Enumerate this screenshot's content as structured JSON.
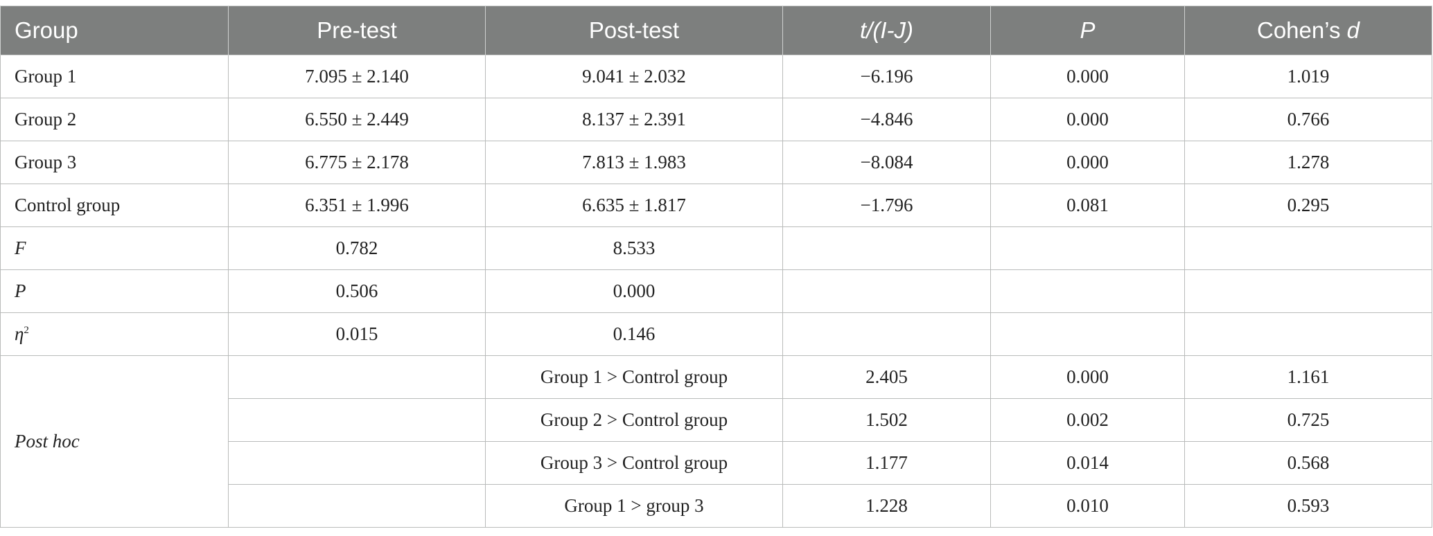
{
  "headers": {
    "group": "Group",
    "pre": "Pre-test",
    "post": "Post-test",
    "t_ij": "t/(I-J)",
    "p": "P",
    "cohen_prefix": "Cohen’s ",
    "cohen_d": "d"
  },
  "rows": [
    {
      "group": "Group 1",
      "pre": "7.095 ± 2.140",
      "post": "9.041 ± 2.032",
      "t": "−6.196",
      "p": "0.000",
      "d": "1.019"
    },
    {
      "group": "Group 2",
      "pre": "6.550 ± 2.449",
      "post": "8.137 ± 2.391",
      "t": "−4.846",
      "p": "0.000",
      "d": "0.766"
    },
    {
      "group": "Group 3",
      "pre": "6.775 ± 2.178",
      "post": "7.813 ± 1.983",
      "t": "−8.084",
      "p": "0.000",
      "d": "1.278"
    },
    {
      "group": "Control group",
      "pre": "6.351 ± 1.996",
      "post": "6.635 ± 1.817",
      "t": "−1.796",
      "p": "0.081",
      "d": "0.295"
    }
  ],
  "stats": {
    "f": {
      "label": "F",
      "pre": "0.782",
      "post": "8.533"
    },
    "p": {
      "label": "P",
      "pre": "0.506",
      "post": "0.000"
    },
    "eta": {
      "label": "η",
      "sup": "2",
      "pre": "0.015",
      "post": "0.146"
    }
  },
  "posthoc": {
    "label": "Post hoc",
    "rows": [
      {
        "comparison": "Group 1 > Control group",
        "t": "2.405",
        "p": "0.000",
        "d": "1.161"
      },
      {
        "comparison": "Group 2 > Control group",
        "t": "1.502",
        "p": "0.002",
        "d": "0.725"
      },
      {
        "comparison": "Group 3 > Control group",
        "t": "1.177",
        "p": "0.014",
        "d": "0.568"
      },
      {
        "comparison": "Group 1 > group 3",
        "t": "1.228",
        "p": "0.010",
        "d": "0.593"
      }
    ]
  }
}
